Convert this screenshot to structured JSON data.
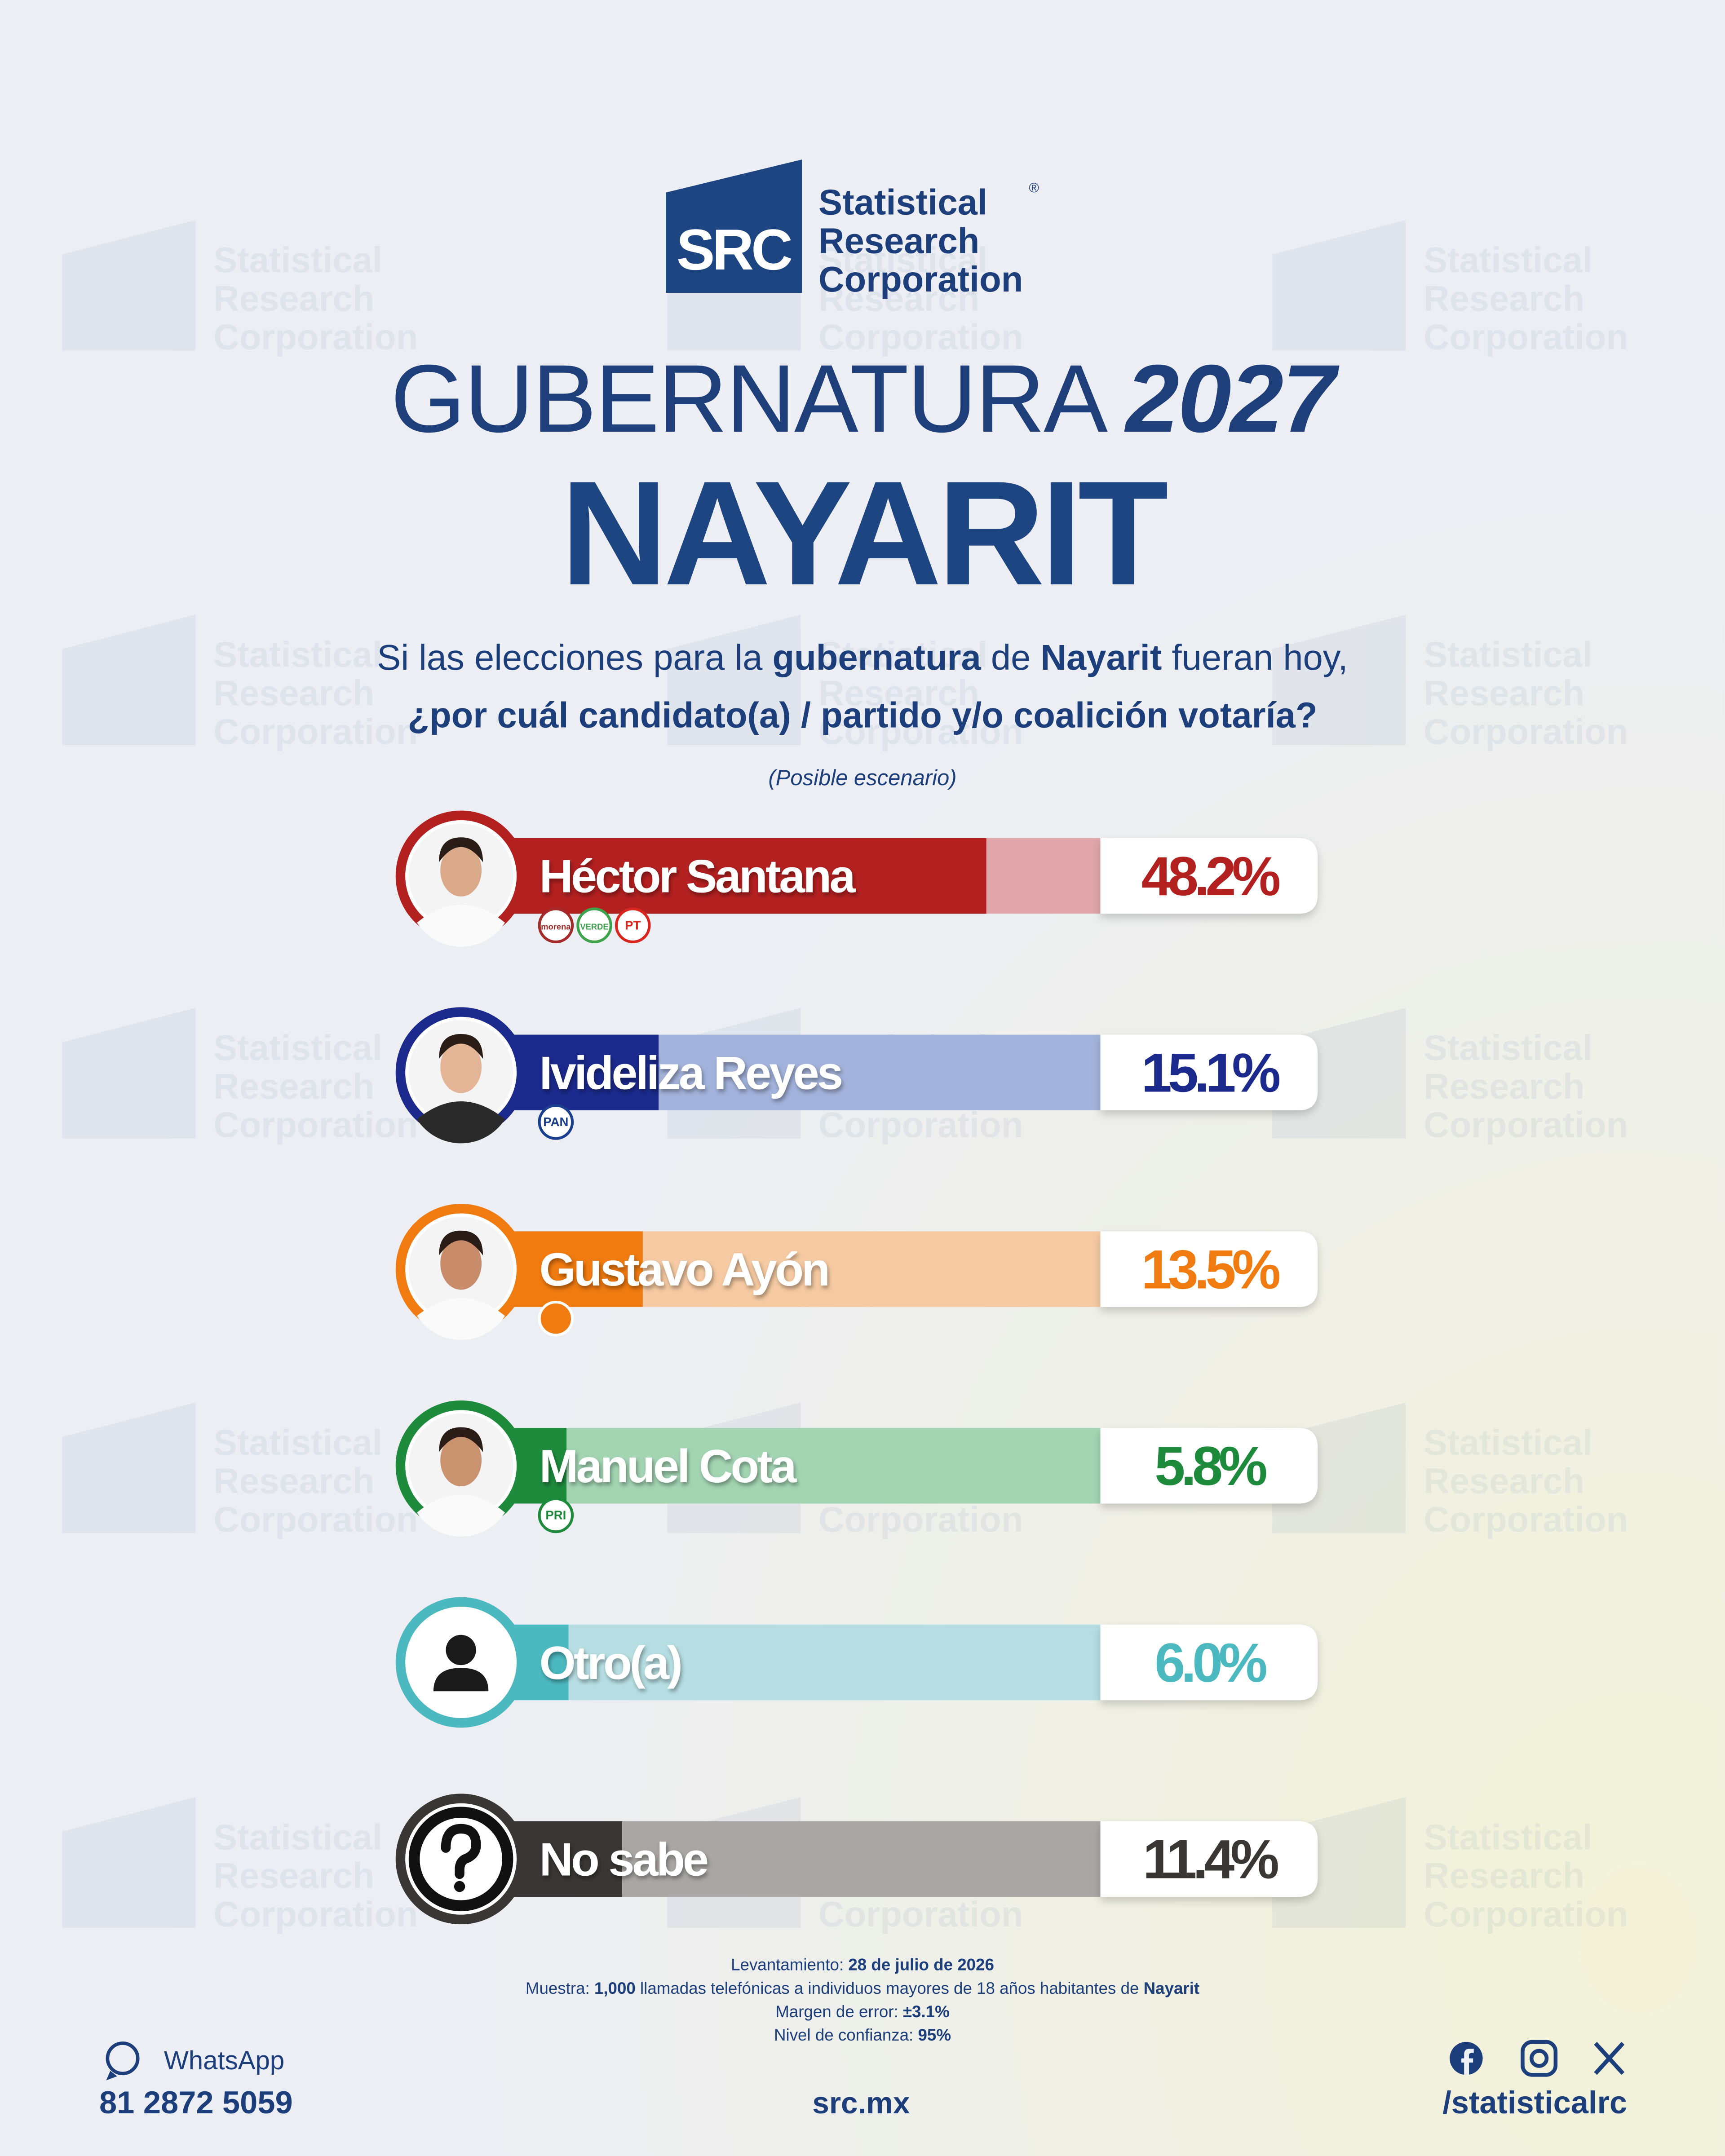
{
  "logo": {
    "short": "SRC",
    "line1": "Statistical",
    "line2": "Research",
    "line3": "Corporation",
    "registered": "®"
  },
  "header": {
    "title": "GUBERNATURA",
    "year": "2027",
    "state": "NAYARIT"
  },
  "question": {
    "p1": "Si las elecciones para la ",
    "b1": "gubernatura",
    "p2": " de ",
    "b2": "Nayarit",
    "p3": " fueran hoy,",
    "line2": "¿por cuál candidato(a) / partido y/o coalición votaría?",
    "note": "(Posible escenario)"
  },
  "chart_data": {
    "type": "bar",
    "orientation": "horizontal",
    "categories": [
      "Héctor Santana",
      "Ivideliza Reyes",
      "Gustavo Ayón",
      "Manuel Cota",
      "Otro(a)",
      "No sabe"
    ],
    "values": [
      48.2,
      15.1,
      13.5,
      5.8,
      6.0,
      11.4
    ],
    "value_labels": [
      "48.2%",
      "15.1%",
      "13.5%",
      "5.8%",
      "6.0%",
      "11.4%"
    ],
    "colors": [
      "#b32020",
      "#1b2a8c",
      "#f07b10",
      "#1e8a3c",
      "#4cb9c0",
      "#3a3636"
    ],
    "track_colors": [
      "#e0a6aa",
      "#a2b2da",
      "#f5caa2",
      "#a3d5b3",
      "#b6dee2",
      "#aaa6a6"
    ],
    "parties": [
      [
        "morena",
        "VERDE",
        "PT"
      ],
      [
        "PAN"
      ],
      [],
      [
        "PRI"
      ],
      [],
      []
    ]
  },
  "footer": {
    "date_label": "Levantamiento: ",
    "date": "28 de julio de 2026",
    "sample_label": "Muestra: ",
    "sample": "1,000",
    "sample_desc": " llamadas telefónicas a individuos mayores de 18 años habitantes de ",
    "sample_place": "Nayarit",
    "error_label": "Margen de error: ",
    "error": "±3.1%",
    "confidence_label": "Nivel de confianza: ",
    "confidence": "95%",
    "whatsapp": "WhatsApp",
    "phone": "81 2872 5059",
    "website": "src.mx",
    "handle": "/statisticalrc"
  }
}
